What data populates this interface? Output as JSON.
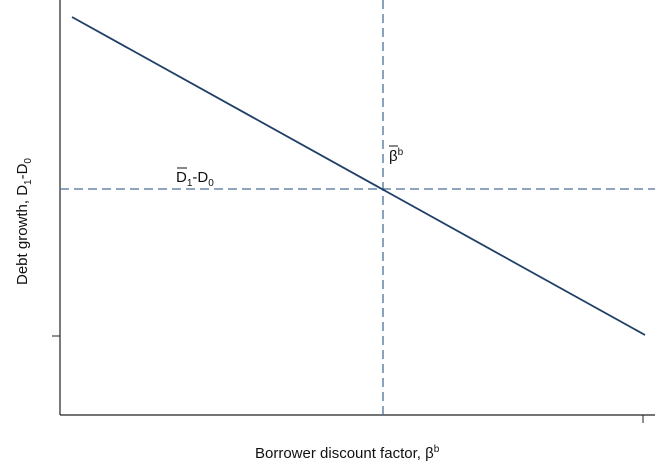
{
  "chart_data": {
    "type": "line",
    "x_label": [
      "Borrower discount factor, β",
      "b"
    ],
    "y_label": [
      "Debt growth, D",
      "1",
      "-D",
      "0"
    ],
    "annotations": [
      [
        "β",
        "b"
      ],
      [
        "D",
        "1",
        "-D",
        "0"
      ]
    ]
  }
}
